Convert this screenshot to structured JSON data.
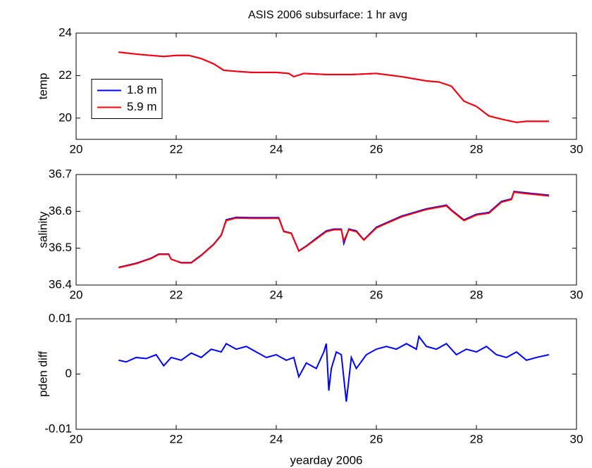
{
  "chart_data": [
    {
      "type": "line",
      "title": "ASIS 2006 subsurface: 1 hr avg",
      "y_label": "temp",
      "x": [
        20.85,
        21.25,
        21.75,
        22.0,
        22.25,
        22.5,
        22.75,
        22.95,
        23.2,
        23.5,
        24.0,
        24.25,
        24.35,
        24.55,
        25.0,
        25.5,
        26.0,
        26.5,
        27.0,
        27.25,
        27.5,
        27.75,
        28.0,
        28.25,
        28.5,
        28.8,
        29.0,
        29.45
      ],
      "series": [
        {
          "name": "1.8 m",
          "color": "#0000ff",
          "values": [
            23.1,
            23.0,
            22.9,
            22.95,
            22.95,
            22.8,
            22.55,
            22.25,
            22.2,
            22.15,
            22.15,
            22.1,
            21.95,
            22.1,
            22.05,
            22.05,
            22.1,
            21.95,
            21.75,
            21.7,
            21.5,
            20.8,
            20.55,
            20.1,
            19.95,
            19.8,
            19.85,
            19.85
          ]
        },
        {
          "name": "5.9 m",
          "color": "#ff0000",
          "values": [
            23.1,
            23.0,
            22.9,
            22.95,
            22.95,
            22.8,
            22.55,
            22.25,
            22.2,
            22.15,
            22.15,
            22.1,
            21.95,
            22.1,
            22.05,
            22.05,
            22.1,
            21.95,
            21.75,
            21.7,
            21.5,
            20.8,
            20.55,
            20.1,
            19.95,
            19.8,
            19.85,
            19.85
          ]
        }
      ],
      "xlim": [
        20,
        30
      ],
      "xticks": [
        20,
        22,
        24,
        26,
        28,
        30
      ],
      "ylim": [
        19,
        24
      ],
      "yticks": [
        20,
        22,
        24
      ],
      "legend": "center left"
    },
    {
      "type": "line",
      "y_label": "salinity",
      "x": [
        20.85,
        21.2,
        21.5,
        21.65,
        21.85,
        21.9,
        22.1,
        22.3,
        22.5,
        22.75,
        22.9,
        23.0,
        23.2,
        23.5,
        24.05,
        24.15,
        24.3,
        24.45,
        24.6,
        24.8,
        25.0,
        25.15,
        25.3,
        25.35,
        25.45,
        25.6,
        25.75,
        26.0,
        26.5,
        27.0,
        27.4,
        27.5,
        27.75,
        28.0,
        28.25,
        28.5,
        28.7,
        28.75,
        29.0,
        29.45
      ],
      "series": [
        {
          "color": "#0000ff",
          "values": [
            36.448,
            36.459,
            36.473,
            36.484,
            36.484,
            36.47,
            36.461,
            36.461,
            36.481,
            36.511,
            36.536,
            36.577,
            36.584,
            36.583,
            36.583,
            36.546,
            36.541,
            36.493,
            36.506,
            36.527,
            36.547,
            36.552,
            36.552,
            36.513,
            36.552,
            36.547,
            36.523,
            36.557,
            36.587,
            36.607,
            36.617,
            36.604,
            36.577,
            36.592,
            36.597,
            36.627,
            36.634,
            36.654,
            36.65,
            36.644
          ]
        },
        {
          "color": "#ff0000",
          "values": [
            36.447,
            36.458,
            36.472,
            36.483,
            36.483,
            36.47,
            36.46,
            36.46,
            36.48,
            36.51,
            36.535,
            36.575,
            36.582,
            36.581,
            36.581,
            36.545,
            36.54,
            36.492,
            36.505,
            36.525,
            36.545,
            36.55,
            36.55,
            36.52,
            36.55,
            36.545,
            36.522,
            36.555,
            36.585,
            36.605,
            36.615,
            36.602,
            36.575,
            36.59,
            36.595,
            36.625,
            36.632,
            36.652,
            36.648,
            36.642
          ]
        }
      ],
      "xlim": [
        20,
        30
      ],
      "xticks": [
        20,
        22,
        24,
        26,
        28,
        30
      ],
      "ylim": [
        36.4,
        36.7
      ],
      "yticks": [
        36.4,
        36.5,
        36.6,
        36.7
      ]
    },
    {
      "type": "line",
      "y_label": "pden diff",
      "x_label": "yearday 2006",
      "x": [
        20.85,
        21.0,
        21.2,
        21.4,
        21.6,
        21.75,
        21.9,
        22.1,
        22.3,
        22.5,
        22.7,
        22.9,
        23.0,
        23.2,
        23.4,
        23.6,
        23.8,
        24.0,
        24.2,
        24.35,
        24.45,
        24.6,
        24.8,
        24.95,
        25.0,
        25.05,
        25.1,
        25.2,
        25.3,
        25.4,
        25.5,
        25.6,
        25.8,
        26.0,
        26.2,
        26.4,
        26.6,
        26.8,
        26.85,
        27.0,
        27.2,
        27.4,
        27.6,
        27.8,
        28.0,
        28.2,
        28.4,
        28.6,
        28.8,
        29.0,
        29.2,
        29.45
      ],
      "series": [
        {
          "color": "#0000ff",
          "values": [
            0.0025,
            0.0022,
            0.003,
            0.0028,
            0.0035,
            0.0015,
            0.003,
            0.0025,
            0.0038,
            0.003,
            0.0045,
            0.004,
            0.0055,
            0.0045,
            0.005,
            0.004,
            0.003,
            0.0035,
            0.0025,
            0.003,
            -0.0005,
            0.002,
            0.001,
            0.004,
            0.0055,
            -0.003,
            0.001,
            0.004,
            0.0035,
            -0.005,
            0.003,
            0.001,
            0.0035,
            0.0045,
            0.005,
            0.0045,
            0.0055,
            0.0045,
            0.0068,
            0.005,
            0.0045,
            0.0055,
            0.0035,
            0.0045,
            0.004,
            0.005,
            0.0035,
            0.003,
            0.004,
            0.0025,
            0.003,
            0.0035
          ]
        }
      ],
      "xlim": [
        20,
        30
      ],
      "xticks": [
        20,
        22,
        24,
        26,
        28,
        30
      ],
      "ylim": [
        -0.01,
        0.01
      ],
      "yticks": [
        -0.01,
        0,
        0.01
      ]
    }
  ]
}
